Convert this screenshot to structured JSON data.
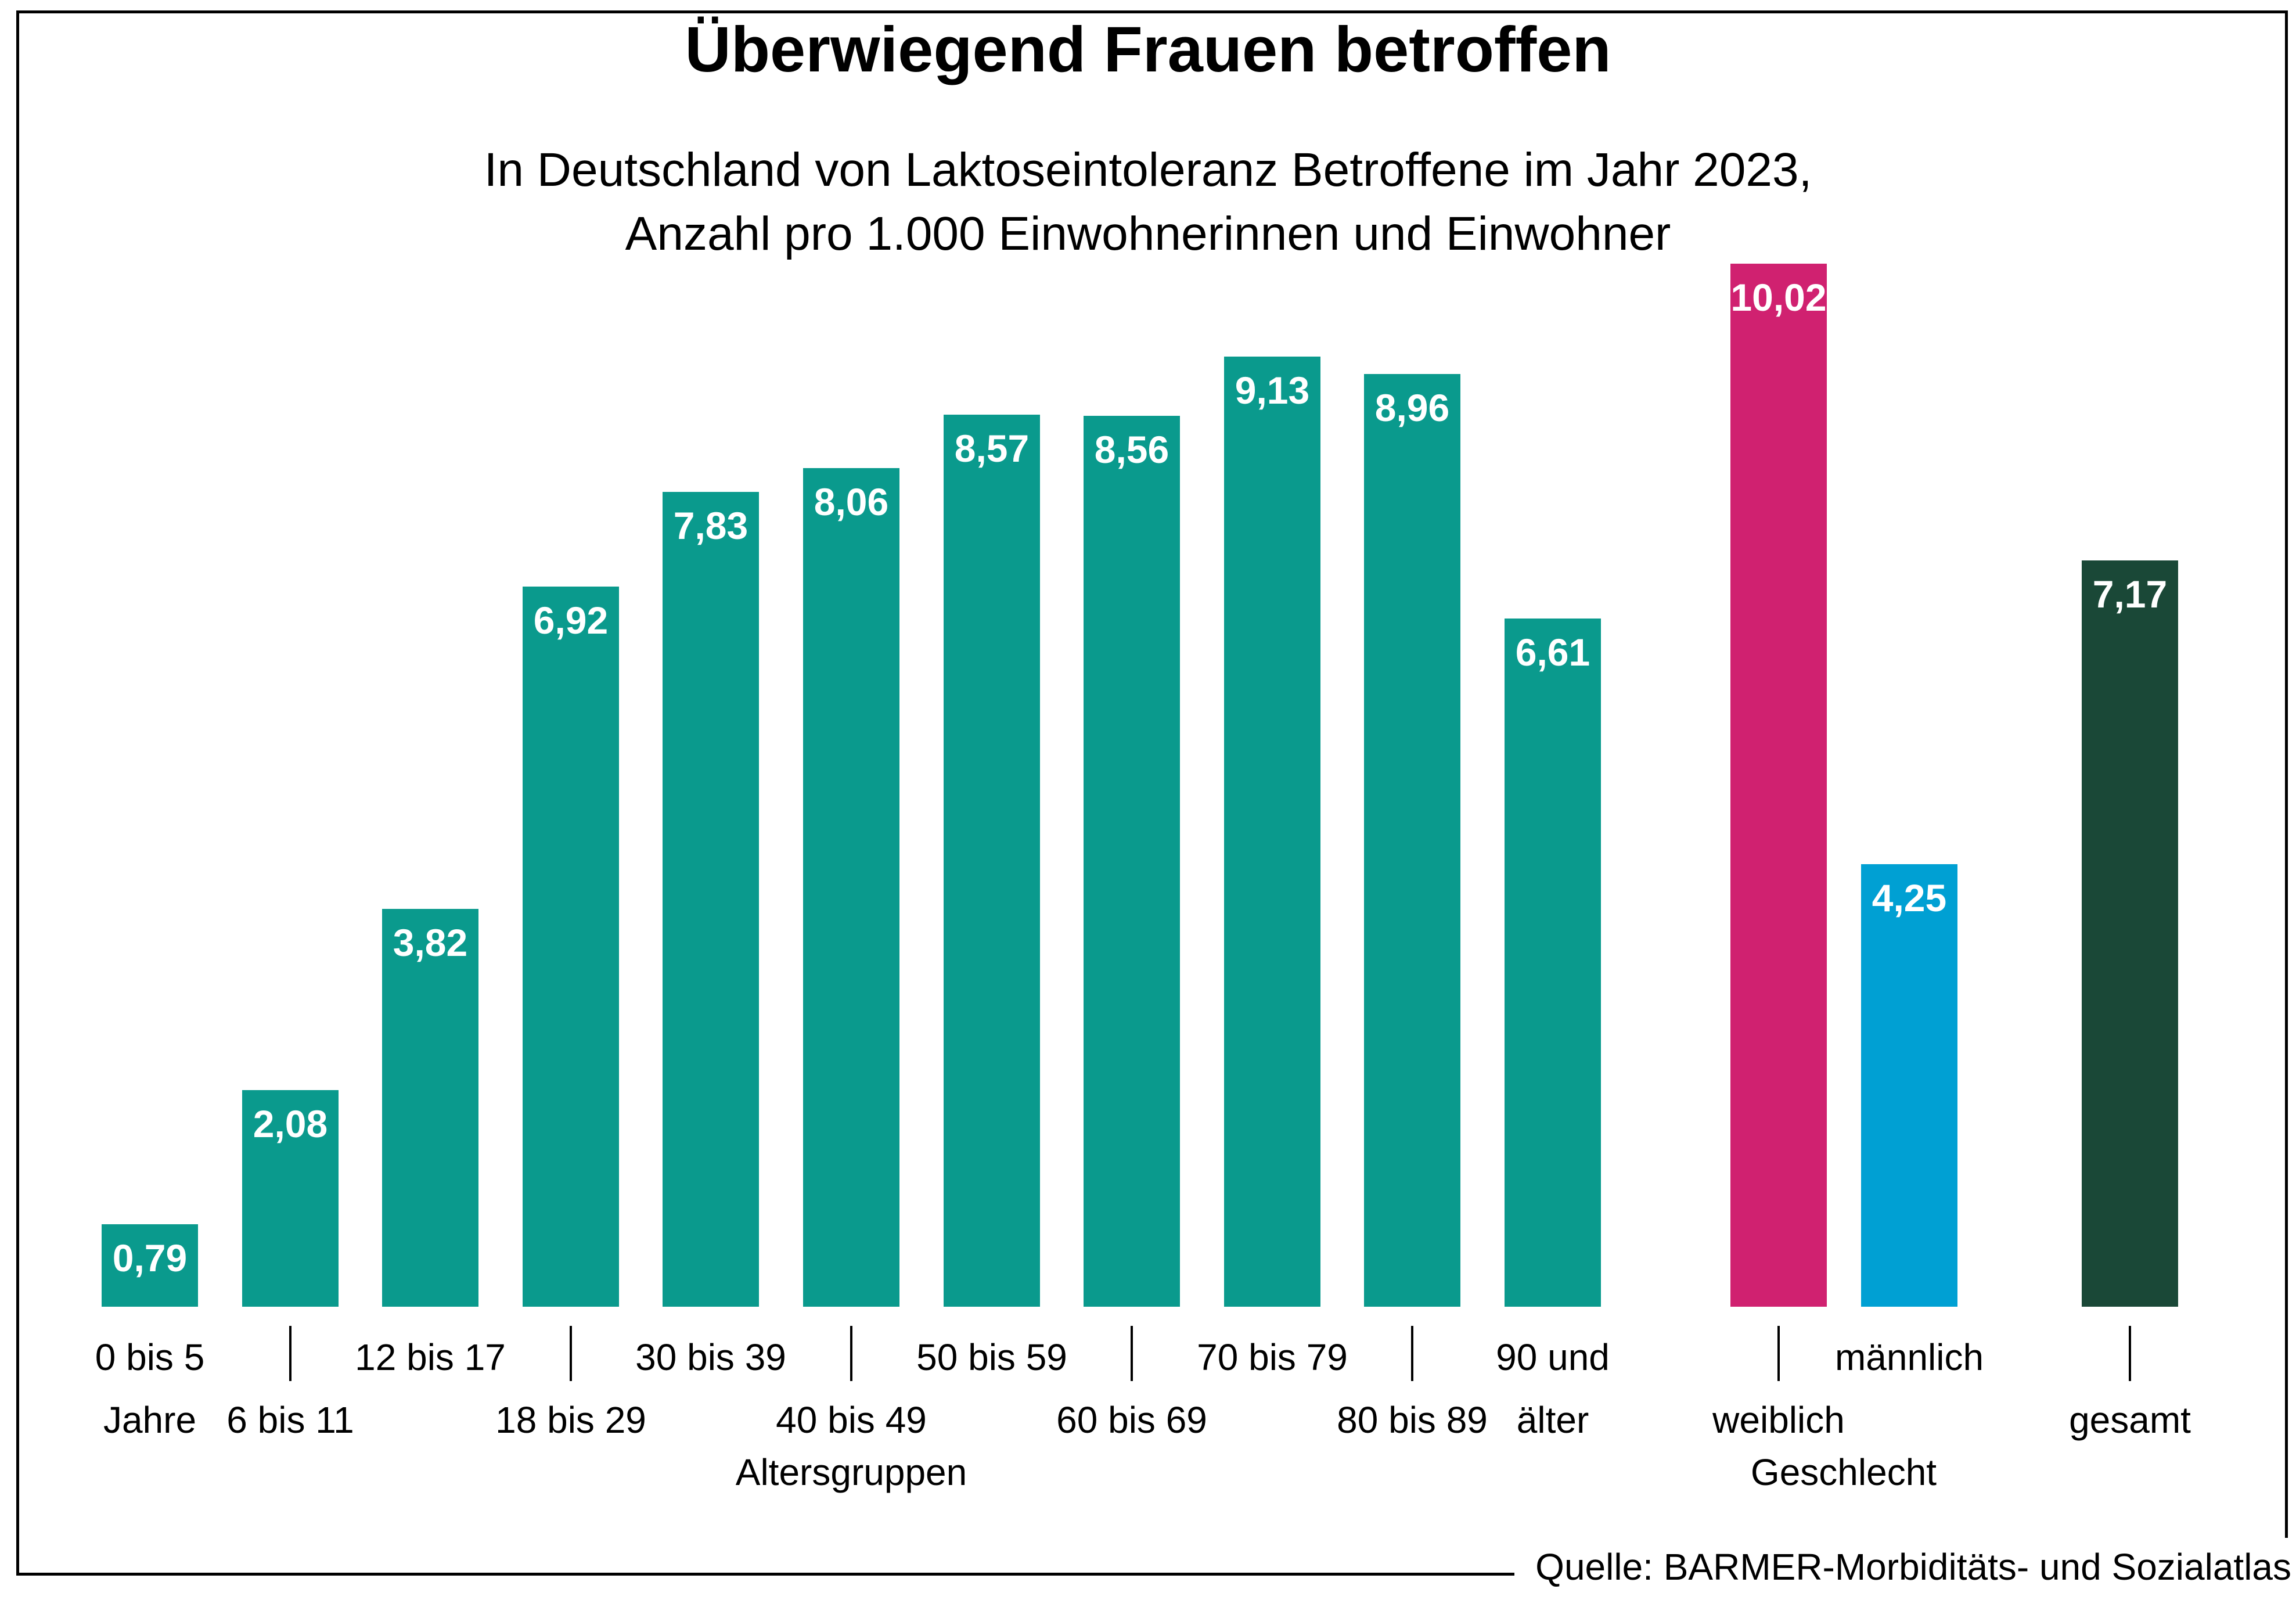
{
  "header": {
    "title": "Überwiegend Frauen betroffen",
    "subtitle": "In Deutschland von Laktoseintoleranz Betroffene im Jahr 2023,\nAnzahl pro 1.000 Einwohnerinnen und Einwohner"
  },
  "source_note": "Quelle: BARMER-Morbiditäts- und Sozialatlas",
  "colors": {
    "age_group": "#0a9a8d",
    "female": "#d02170",
    "male": "#00a0d3",
    "total": "#1a4837",
    "text": "#000000",
    "value_label": "#ffffff"
  },
  "chart_data": {
    "type": "bar",
    "title": "Überwiegend Frauen betroffen",
    "subtitle_lines": [
      "In Deutschland von Laktoseintoleranz Betroffene im Jahr 2023,",
      "Anzahl pro 1.000 Einwohnerinnen und Einwohner"
    ],
    "ylabel": "Anzahl pro 1.000 Einwohnerinnen und Einwohner",
    "ylim": [
      0,
      10.5
    ],
    "grid": false,
    "legend": "none",
    "decimal_style": "comma",
    "axis_group_titles": [
      {
        "label": "Altersgruppen"
      },
      {
        "label": "Geschlecht"
      }
    ],
    "bars": [
      {
        "group": "Altersgruppen",
        "label": "0 bis 5 Jahre",
        "label_lines": [
          "0 bis 5",
          "Jahre"
        ],
        "row": "upper",
        "tick": false,
        "value": 0.79,
        "display": "0,79",
        "color_key": "age_group"
      },
      {
        "group": "Altersgruppen",
        "label": "6 bis 11",
        "label_lines": [
          "6 bis 11"
        ],
        "row": "lower",
        "tick": true,
        "value": 2.08,
        "display": "2,08",
        "color_key": "age_group"
      },
      {
        "group": "Altersgruppen",
        "label": "12 bis 17",
        "label_lines": [
          "12 bis 17"
        ],
        "row": "upper",
        "tick": false,
        "value": 3.82,
        "display": "3,82",
        "color_key": "age_group"
      },
      {
        "group": "Altersgruppen",
        "label": "18 bis 29",
        "label_lines": [
          "18 bis 29"
        ],
        "row": "lower",
        "tick": true,
        "value": 6.92,
        "display": "6,92",
        "color_key": "age_group"
      },
      {
        "group": "Altersgruppen",
        "label": "30 bis 39",
        "label_lines": [
          "30 bis 39"
        ],
        "row": "upper",
        "tick": false,
        "value": 7.83,
        "display": "7,83",
        "color_key": "age_group"
      },
      {
        "group": "Altersgruppen",
        "label": "40 bis 49",
        "label_lines": [
          "40 bis 49"
        ],
        "row": "lower",
        "tick": true,
        "value": 8.06,
        "display": "8,06",
        "color_key": "age_group"
      },
      {
        "group": "Altersgruppen",
        "label": "50 bis 59",
        "label_lines": [
          "50 bis 59"
        ],
        "row": "upper",
        "tick": false,
        "value": 8.57,
        "display": "8,57",
        "color_key": "age_group"
      },
      {
        "group": "Altersgruppen",
        "label": "60 bis 69",
        "label_lines": [
          "60 bis 69"
        ],
        "row": "lower",
        "tick": true,
        "value": 8.56,
        "display": "8,56",
        "color_key": "age_group"
      },
      {
        "group": "Altersgruppen",
        "label": "70 bis 79",
        "label_lines": [
          "70 bis 79"
        ],
        "row": "upper",
        "tick": false,
        "value": 9.13,
        "display": "9,13",
        "color_key": "age_group"
      },
      {
        "group": "Altersgruppen",
        "label": "80 bis 89",
        "label_lines": [
          "80 bis 89"
        ],
        "row": "lower",
        "tick": true,
        "value": 8.96,
        "display": "8,96",
        "color_key": "age_group"
      },
      {
        "group": "Altersgruppen",
        "label": "90 und älter",
        "label_lines": [
          "90 und",
          "älter"
        ],
        "row": "upper",
        "tick": false,
        "value": 6.61,
        "display": "6,61",
        "color_key": "age_group"
      },
      {
        "group": "Geschlecht",
        "label": "weiblich",
        "label_lines": [
          "weiblich"
        ],
        "row": "lower",
        "tick": true,
        "value": 10.02,
        "display": "10,02",
        "color_key": "female"
      },
      {
        "group": "Geschlecht",
        "label": "männlich",
        "label_lines": [
          "männlich"
        ],
        "row": "upper",
        "tick": false,
        "value": 4.25,
        "display": "4,25",
        "color_key": "male"
      },
      {
        "group": "gesamt",
        "label": "gesamt",
        "label_lines": [
          "gesamt"
        ],
        "row": "lower",
        "tick": true,
        "value": 7.17,
        "display": "7,17",
        "color_key": "total"
      }
    ]
  }
}
